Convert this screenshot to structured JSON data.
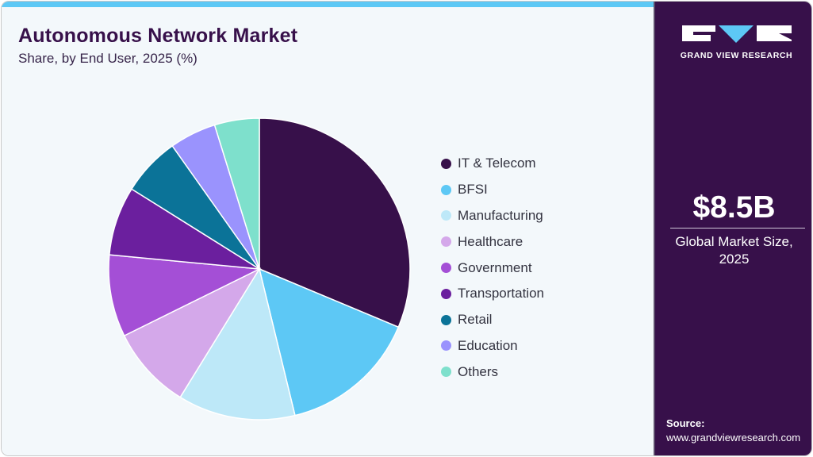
{
  "header": {
    "title": "Autonomous Network Market",
    "subtitle": "Share, by End User, 2025 (%)"
  },
  "brand": {
    "name": "GRAND VIEW RESEARCH",
    "colors": {
      "panel": "#37104a",
      "accent": "#5dc8f5",
      "background": "#f3f8fb"
    }
  },
  "stat": {
    "value": "$8.5B",
    "label_line1": "Global Market Size,",
    "label_line2": "2025"
  },
  "source": {
    "heading": "Source:",
    "url": "www.grandviewresearch.com"
  },
  "chart_data": {
    "type": "pie",
    "title": "Autonomous Network Market",
    "subtitle": "Share, by End User, 2025 (%)",
    "legend_position": "right",
    "start_angle": "12 o'clock, clockwise",
    "categories": [
      "IT & Telecom",
      "BFSI",
      "Manufacturing",
      "Healthcare",
      "Government",
      "Transportation",
      "Retail",
      "Education",
      "Others"
    ],
    "values": [
      31.3,
      14.9,
      12.6,
      8.9,
      8.8,
      7.4,
      6.3,
      5.0,
      4.8
    ],
    "colors": [
      "#37104a",
      "#5dc8f5",
      "#bde8f8",
      "#d4a8ea",
      "#a44fd6",
      "#6b1f9e",
      "#0b7398",
      "#9a93fd",
      "#7ee0cc"
    ]
  }
}
